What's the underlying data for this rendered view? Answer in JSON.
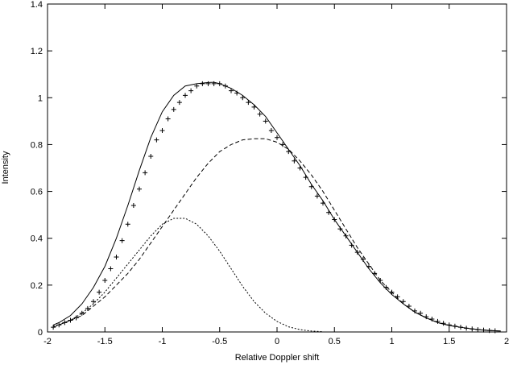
{
  "chart_data": {
    "type": "line",
    "title": "",
    "xlabel": "Relative Doppler shift",
    "ylabel": "Intensity",
    "xlim": [
      -2,
      2
    ],
    "ylim": [
      0,
      1.4
    ],
    "x_ticks": [
      "-2",
      "-1.5",
      "-1",
      "-0.5",
      "0",
      "0.5",
      "1",
      "1.5",
      "2"
    ],
    "y_ticks": [
      "0",
      "0.2",
      "0.4",
      "0.6",
      "0.8",
      "1",
      "1.2",
      "1.4"
    ],
    "grid": false,
    "legend": "none",
    "series": [
      {
        "style": "solid",
        "color": "#000000",
        "x": [
          -1.95,
          -1.9,
          -1.8,
          -1.7,
          -1.6,
          -1.5,
          -1.4,
          -1.3,
          -1.2,
          -1.1,
          -1.0,
          -0.9,
          -0.8,
          -0.7,
          -0.6,
          -0.55,
          -0.5,
          -0.4,
          -0.3,
          -0.2,
          -0.1,
          0.0,
          0.1,
          0.2,
          0.3,
          0.4,
          0.5,
          0.6,
          0.7,
          0.8,
          0.9,
          1.0,
          1.1,
          1.2,
          1.3,
          1.4,
          1.5,
          1.6,
          1.7,
          1.8,
          1.9,
          1.95
        ],
        "y": [
          0.03,
          0.04,
          0.07,
          0.12,
          0.19,
          0.28,
          0.4,
          0.54,
          0.69,
          0.83,
          0.94,
          1.01,
          1.05,
          1.06,
          1.065,
          1.066,
          1.06,
          1.04,
          1.01,
          0.97,
          0.92,
          0.85,
          0.78,
          0.71,
          0.63,
          0.56,
          0.48,
          0.41,
          0.34,
          0.27,
          0.21,
          0.16,
          0.12,
          0.085,
          0.06,
          0.04,
          0.028,
          0.02,
          0.013,
          0.008,
          0.005,
          0.004
        ]
      },
      {
        "style": "dashed",
        "color": "#000000",
        "x": [
          -1.95,
          -1.9,
          -1.8,
          -1.7,
          -1.6,
          -1.5,
          -1.4,
          -1.3,
          -1.2,
          -1.1,
          -1.0,
          -0.9,
          -0.8,
          -0.7,
          -0.6,
          -0.5,
          -0.4,
          -0.3,
          -0.2,
          -0.1,
          0.0,
          0.1,
          0.2,
          0.3,
          0.4,
          0.5,
          0.6,
          0.7,
          0.8,
          0.9,
          1.0,
          1.1,
          1.2,
          1.3,
          1.4,
          1.5,
          1.6,
          1.7,
          1.8,
          1.9,
          1.95
        ],
        "y": [
          0.02,
          0.03,
          0.05,
          0.07,
          0.11,
          0.15,
          0.2,
          0.25,
          0.31,
          0.38,
          0.45,
          0.52,
          0.59,
          0.66,
          0.72,
          0.77,
          0.8,
          0.82,
          0.825,
          0.825,
          0.81,
          0.78,
          0.73,
          0.67,
          0.6,
          0.52,
          0.44,
          0.36,
          0.29,
          0.22,
          0.17,
          0.12,
          0.085,
          0.06,
          0.04,
          0.028,
          0.02,
          0.013,
          0.008,
          0.005,
          0.004
        ]
      },
      {
        "style": "dotted",
        "color": "#000000",
        "x": [
          -1.95,
          -1.9,
          -1.8,
          -1.7,
          -1.6,
          -1.5,
          -1.4,
          -1.3,
          -1.2,
          -1.1,
          -1.0,
          -0.9,
          -0.8,
          -0.7,
          -0.6,
          -0.5,
          -0.4,
          -0.3,
          -0.2,
          -0.1,
          0.0,
          0.1,
          0.2,
          0.3,
          0.4
        ],
        "y": [
          0.025,
          0.03,
          0.05,
          0.08,
          0.12,
          0.17,
          0.23,
          0.29,
          0.35,
          0.41,
          0.46,
          0.485,
          0.485,
          0.46,
          0.41,
          0.345,
          0.27,
          0.195,
          0.13,
          0.08,
          0.045,
          0.022,
          0.01,
          0.004,
          0.001
        ]
      },
      {
        "style": "points",
        "marker": "+",
        "color": "#000000",
        "x": [
          -1.95,
          -1.9,
          -1.85,
          -1.8,
          -1.75,
          -1.7,
          -1.65,
          -1.6,
          -1.55,
          -1.5,
          -1.45,
          -1.4,
          -1.35,
          -1.3,
          -1.25,
          -1.2,
          -1.15,
          -1.1,
          -1.05,
          -1.0,
          -0.95,
          -0.9,
          -0.85,
          -0.8,
          -0.75,
          -0.7,
          -0.65,
          -0.6,
          -0.55,
          -0.5,
          -0.45,
          -0.4,
          -0.35,
          -0.3,
          -0.25,
          -0.2,
          -0.15,
          -0.1,
          -0.05,
          0.0,
          0.05,
          0.1,
          0.15,
          0.2,
          0.25,
          0.3,
          0.35,
          0.4,
          0.45,
          0.5,
          0.55,
          0.6,
          0.65,
          0.7,
          0.75,
          0.8,
          0.85,
          0.9,
          0.95,
          1.0,
          1.05,
          1.1,
          1.15,
          1.2,
          1.25,
          1.3,
          1.35,
          1.4,
          1.45,
          1.5,
          1.55,
          1.6,
          1.65,
          1.7,
          1.75,
          1.8,
          1.85,
          1.9
        ],
        "y": [
          0.02,
          0.03,
          0.04,
          0.05,
          0.06,
          0.08,
          0.1,
          0.13,
          0.17,
          0.22,
          0.27,
          0.32,
          0.39,
          0.46,
          0.54,
          0.61,
          0.68,
          0.75,
          0.82,
          0.86,
          0.91,
          0.95,
          0.98,
          1.01,
          1.03,
          1.05,
          1.06,
          1.06,
          1.06,
          1.06,
          1.05,
          1.03,
          1.02,
          1.0,
          0.98,
          0.96,
          0.93,
          0.9,
          0.86,
          0.83,
          0.8,
          0.77,
          0.73,
          0.7,
          0.66,
          0.62,
          0.58,
          0.55,
          0.51,
          0.48,
          0.44,
          0.41,
          0.37,
          0.34,
          0.31,
          0.28,
          0.25,
          0.22,
          0.19,
          0.17,
          0.15,
          0.13,
          0.11,
          0.09,
          0.08,
          0.065,
          0.055,
          0.045,
          0.037,
          0.03,
          0.025,
          0.02,
          0.016,
          0.013,
          0.01,
          0.008,
          0.006,
          0.005
        ]
      }
    ]
  }
}
